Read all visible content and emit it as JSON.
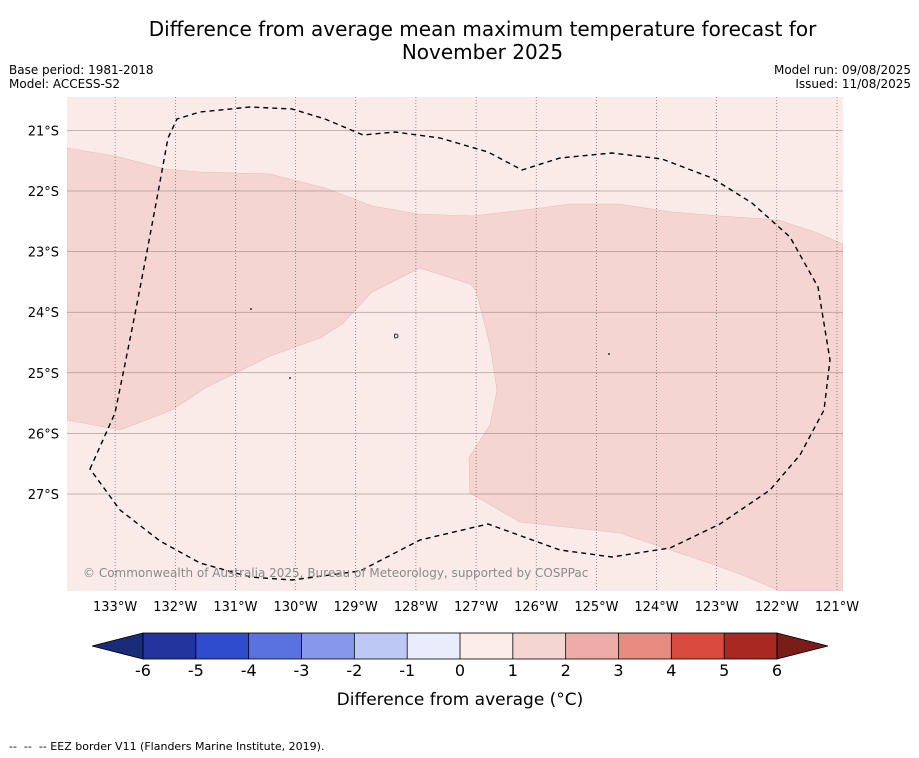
{
  "header": {
    "title_line1": "Difference from average mean maximum temperature forecast for",
    "title_line2": "November 2025",
    "base_period": "Base period: 1981-2018",
    "model": "Model: ACCESS-S2",
    "model_run": "Model run: 09/08/2025",
    "issued": "Issued: 11/08/2025"
  },
  "map": {
    "lon_range": [
      -133.8,
      -120.9
    ],
    "lat_range": [
      -28.6,
      -20.45
    ],
    "lon_ticks": [
      -133,
      -132,
      -131,
      -130,
      -129,
      -128,
      -127,
      -126,
      -125,
      -124,
      -123,
      -122,
      -121
    ],
    "lon_labels": [
      "133°W",
      "132°W",
      "131°W",
      "130°W",
      "129°W",
      "128°W",
      "127°W",
      "126°W",
      "125°W",
      "124°W",
      "123°W",
      "122°W",
      "121°W"
    ],
    "lat_ticks": [
      -21,
      -22,
      -23,
      -24,
      -25,
      -26,
      -27
    ],
    "lat_labels": [
      "21°S",
      "22°S",
      "23°S",
      "24°S",
      "25°S",
      "26°S",
      "27°S"
    ],
    "copyright": "© Commonwealth of Australia 2025, Bureau of Meteorology, supported by COSPPac",
    "colors": {
      "band_0_1": "#fbebe8",
      "band_1_2": "#f5d5d2",
      "eez_line": "#000000"
    }
  },
  "colorbar": {
    "ticks": [
      "-6",
      "-5",
      "-4",
      "-3",
      "-2",
      "-1",
      "0",
      "1",
      "2",
      "3",
      "4",
      "5",
      "6"
    ],
    "label": "Difference from average (°C)",
    "colors": [
      "#24349e",
      "#2e4ccd",
      "#5a72e0",
      "#8798ec",
      "#bec8f5",
      "#e8ecfb",
      "#fcece8",
      "#f5d5d2",
      "#edaca6",
      "#e78a7f",
      "#d94a3e",
      "#a82822"
    ],
    "under_color": "#1a2b78",
    "over_color": "#7a1c18"
  },
  "footer": {
    "legend": "--  --  -- EEZ border V11 (Flanders Marine Institute, 2019)."
  }
}
